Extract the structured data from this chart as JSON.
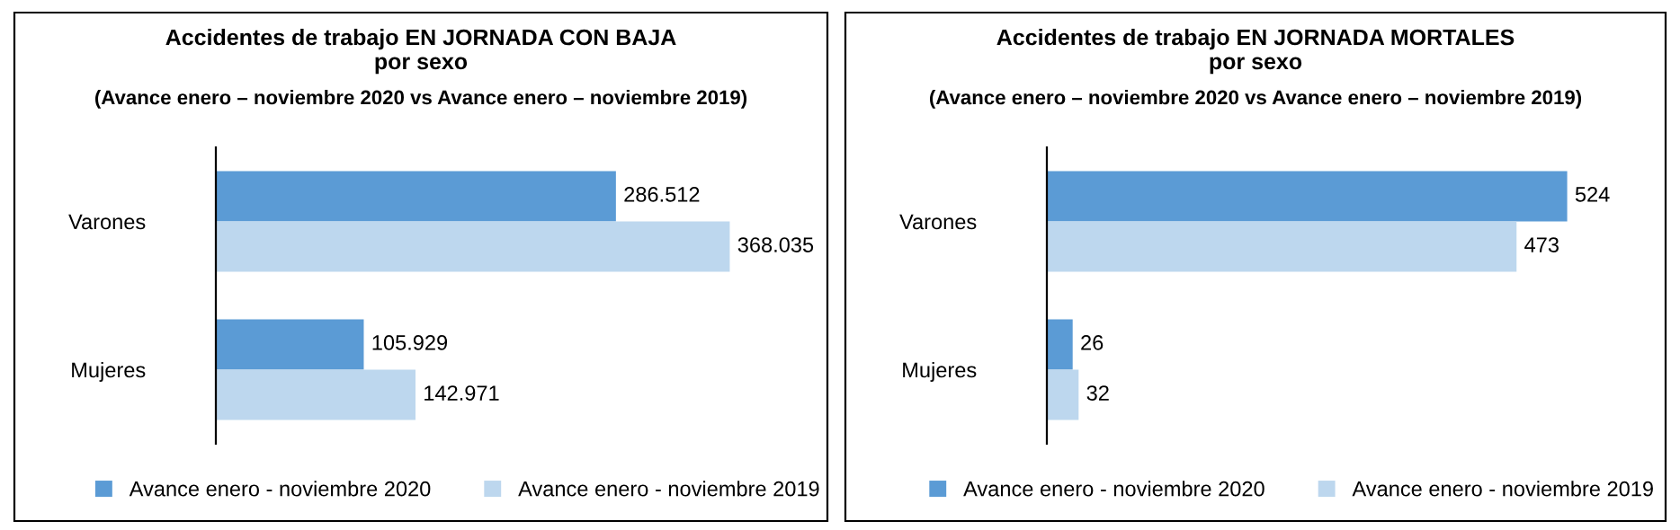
{
  "chart_data": [
    {
      "type": "bar",
      "orientation": "horizontal",
      "title": "Accidentes de trabajo EN JORNADA CON BAJA\npor sexo",
      "subtitle": "(Avance enero – noviembre 2020 vs Avance enero – noviembre 2019)",
      "categories": [
        "Varones",
        "Mujeres"
      ],
      "series": [
        {
          "name": "Avance enero - noviembre 2020",
          "color": "#5b9bd5",
          "values": [
            286512,
            105929
          ],
          "value_labels": [
            "286.512",
            "105.929"
          ]
        },
        {
          "name": "Avance enero - noviembre 2019",
          "color": "#bdd7ee",
          "values": [
            368035,
            142971
          ],
          "value_labels": [
            "368.035",
            "142.971"
          ]
        }
      ],
      "legend": "bottom",
      "grid": false,
      "tick_labels": "y"
    },
    {
      "type": "bar",
      "orientation": "horizontal",
      "title": "Accidentes de trabajo EN JORNADA MORTALES\npor sexo",
      "subtitle": "(Avance enero – noviembre 2020 vs Avance enero – noviembre 2019)",
      "categories": [
        "Varones",
        "Mujeres"
      ],
      "series": [
        {
          "name": "Avance enero - noviembre 2020",
          "color": "#5b9bd5",
          "values": [
            524,
            26
          ],
          "value_labels": [
            "524",
            "26"
          ]
        },
        {
          "name": "Avance enero - noviembre 2019",
          "color": "#bdd7ee",
          "values": [
            473,
            32
          ],
          "value_labels": [
            "473",
            "32"
          ]
        }
      ],
      "legend": "bottom",
      "grid": false,
      "tick_labels": "y"
    }
  ]
}
